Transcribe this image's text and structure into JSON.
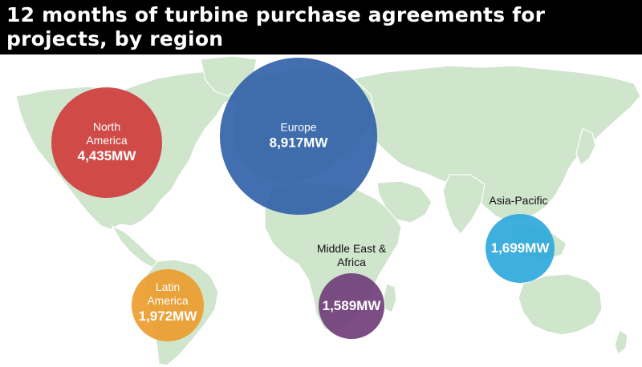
{
  "title": "12 months of turbine purchase agreements for projects, by region",
  "unit": "MW",
  "colors": {
    "land": "#cfe5cc",
    "header": "#000000"
  },
  "regions": [
    {
      "name": "North America",
      "value_label": "4,435MW",
      "value": 4435,
      "color": "#cf3a3a"
    },
    {
      "name": "Europe",
      "value_label": "8,917MW",
      "value": 8917,
      "color": "#2f5ea6"
    },
    {
      "name": "Asia-Pacific",
      "value_label": "1,699MW",
      "value": 1699,
      "color": "#2aa6dd"
    },
    {
      "name": "Middle East & Africa",
      "value_label": "1,589MW",
      "value": 1589,
      "color": "#6e3b78"
    },
    {
      "name": "Latin America",
      "value_label": "1,972MW",
      "value": 1972,
      "color": "#ec9a2a"
    }
  ]
}
